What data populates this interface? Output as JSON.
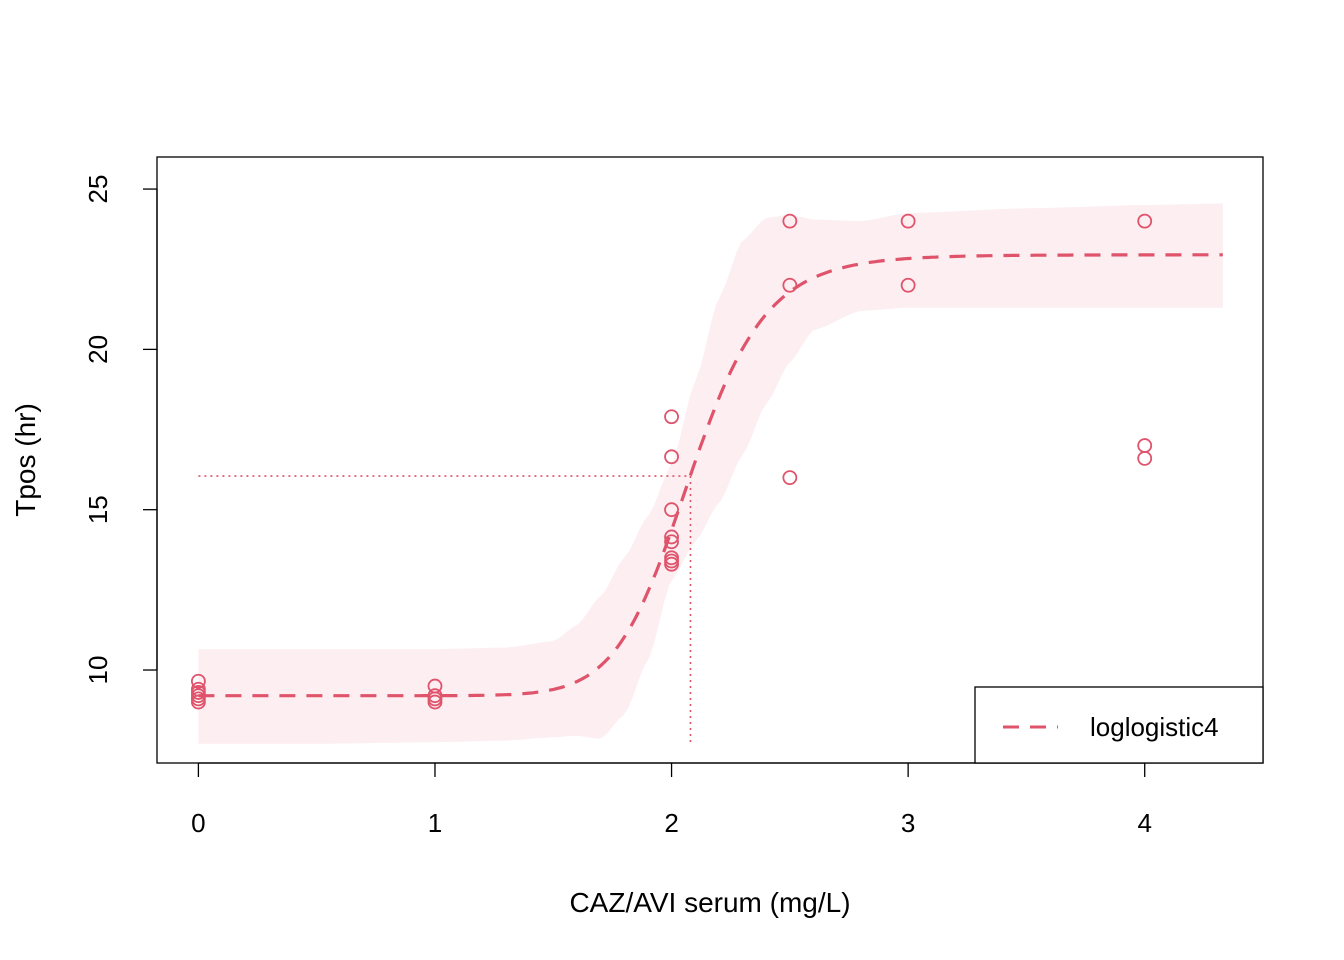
{
  "chart_data": {
    "type": "scatter",
    "xlabel": "CAZ/AVI serum (mg/L)",
    "ylabel": "Tpos (hr)",
    "xlim": [
      -0.175,
      4.5
    ],
    "ylim": [
      7.1,
      26
    ],
    "x_ticks": [
      "0",
      "1",
      "2",
      "3",
      "4"
    ],
    "y_ticks": [
      "10",
      "15",
      "20",
      "25"
    ],
    "legend": {
      "position": "bottom-right",
      "entries": [
        "loglogistic4"
      ]
    },
    "color": "#DF536B",
    "band_color": "#FCEEF1",
    "points": [
      {
        "x": 0,
        "y": 9.65
      },
      {
        "x": 0,
        "y": 9.4
      },
      {
        "x": 0,
        "y": 9.3
      },
      {
        "x": 0,
        "y": 9.2
      },
      {
        "x": 0,
        "y": 9.1
      },
      {
        "x": 0,
        "y": 9.0
      },
      {
        "x": 1,
        "y": 9.5
      },
      {
        "x": 1,
        "y": 9.2
      },
      {
        "x": 1,
        "y": 9.1
      },
      {
        "x": 1,
        "y": 9.0
      },
      {
        "x": 2,
        "y": 17.9
      },
      {
        "x": 2,
        "y": 16.65
      },
      {
        "x": 2,
        "y": 15.0
      },
      {
        "x": 2,
        "y": 14.15
      },
      {
        "x": 2,
        "y": 14.0
      },
      {
        "x": 2,
        "y": 13.5
      },
      {
        "x": 2,
        "y": 13.4
      },
      {
        "x": 2,
        "y": 13.3
      },
      {
        "x": 2.5,
        "y": 24.0
      },
      {
        "x": 2.5,
        "y": 22.0
      },
      {
        "x": 2.5,
        "y": 16.0
      },
      {
        "x": 3,
        "y": 24.0
      },
      {
        "x": 3,
        "y": 22.0
      },
      {
        "x": 4,
        "y": 24.0
      },
      {
        "x": 4,
        "y": 17.0
      },
      {
        "x": 4,
        "y": 16.6
      }
    ],
    "fit": {
      "name": "loglogistic4",
      "lower": 9.2,
      "upper": 22.95,
      "ec50": 2.08,
      "slope": 13,
      "x_range": [
        0,
        4.33
      ]
    },
    "confidence_band": {
      "x": [
        0,
        0.5,
        1.0,
        1.3,
        1.5,
        1.6,
        1.7,
        1.8,
        1.9,
        2.0,
        2.1,
        2.2,
        2.3,
        2.4,
        2.5,
        2.6,
        2.8,
        3.0,
        3.5,
        4.0,
        4.33
      ],
      "lower": [
        7.7,
        7.7,
        7.75,
        7.8,
        7.9,
        7.95,
        7.85,
        8.6,
        10.3,
        12.8,
        14.0,
        15.2,
        16.7,
        18.3,
        19.6,
        20.6,
        21.2,
        21.3,
        21.3,
        21.3,
        21.3
      ],
      "upper": [
        10.65,
        10.65,
        10.65,
        10.7,
        10.9,
        11.4,
        12.3,
        13.5,
        14.8,
        16.4,
        19.0,
        21.6,
        23.4,
        24.1,
        24.2,
        24.05,
        24.0,
        24.25,
        24.4,
        24.5,
        24.55
      ]
    },
    "reference_lines": {
      "y": 16.05,
      "x": 2.08
    }
  }
}
